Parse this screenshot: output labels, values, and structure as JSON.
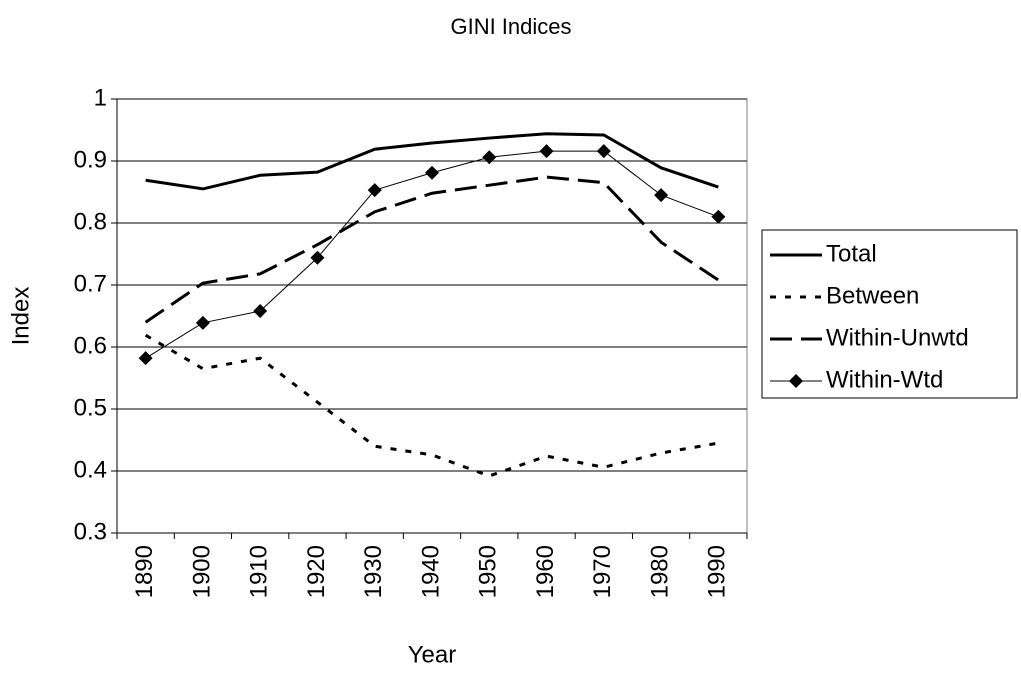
{
  "chart_data": {
    "type": "line",
    "title": "GINI Indices",
    "x_label": "Year",
    "y_label": "Index",
    "categories": [
      "1890",
      "1900",
      "1910",
      "1920",
      "1930",
      "1940",
      "1950",
      "1960",
      "1970",
      "1980",
      "1990"
    ],
    "ylim": [
      0.3,
      1
    ],
    "yticks": [
      0.3,
      0.4,
      0.5,
      0.6,
      0.7,
      0.8,
      0.9,
      1
    ],
    "grid": true,
    "legend": "right",
    "series": [
      {
        "name": "Total",
        "color": "#000000",
        "dash": "solid",
        "width": 3,
        "values": [
          0.869,
          0.855,
          0.877,
          0.882,
          0.919,
          0.929,
          0.937,
          0.944,
          0.942,
          0.889,
          0.858
        ]
      },
      {
        "name": "Between",
        "color": "#000000",
        "dash": "dot",
        "width": 3,
        "values": [
          0.619,
          0.565,
          0.582,
          0.511,
          0.44,
          0.426,
          0.392,
          0.424,
          0.406,
          0.429,
          0.445
        ]
      },
      {
        "name": "Within-Unwtd",
        "color": "#000000",
        "dash": "dash",
        "width": 3,
        "values": [
          0.64,
          0.703,
          0.718,
          0.765,
          0.818,
          0.848,
          0.861,
          0.874,
          0.865,
          0.769,
          0.708
        ]
      },
      {
        "name": "Within-Wtd",
        "color": "#000000",
        "dash": "solid",
        "width": 1,
        "marker": "diamond",
        "values": [
          0.582,
          0.639,
          0.658,
          0.744,
          0.853,
          0.881,
          0.906,
          0.916,
          0.916,
          0.845,
          0.81
        ]
      }
    ]
  }
}
